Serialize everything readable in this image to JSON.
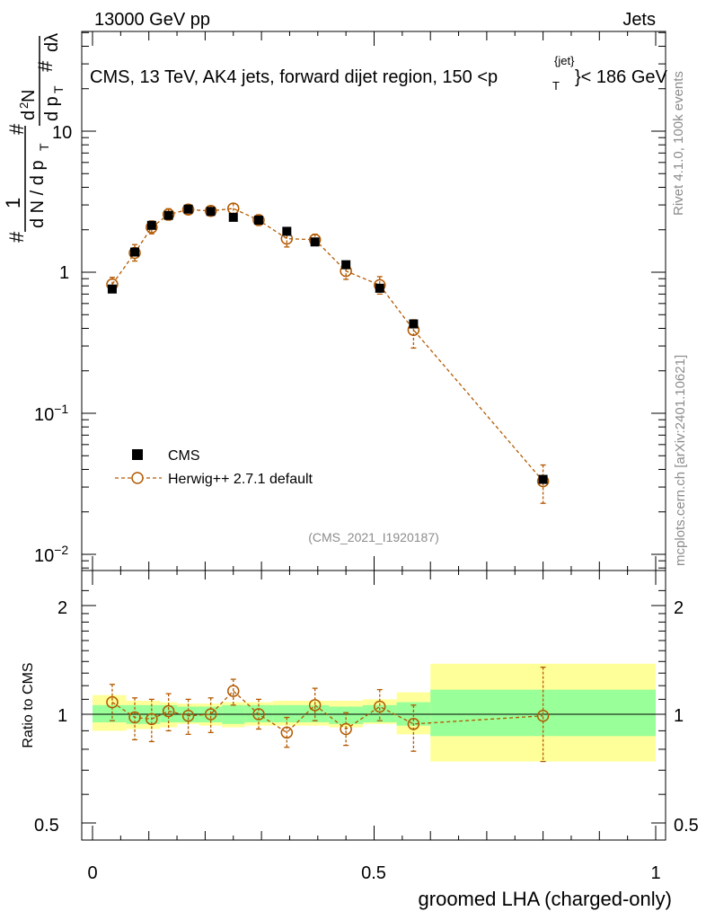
{
  "header": {
    "energy_label": "13000 GeV pp",
    "category_label": "Jets",
    "title_prefix": "CMS, 13 TeV, AK4 jets, forward dijet region, 150 <p",
    "title_sup": "{jet}",
    "title_sub": "T",
    "title_suffix": "}< 186 GeV",
    "analysis_id": "(CMS_2021_I1920187)"
  },
  "side_labels": {
    "rivet": "Rivet 4.1.0,  100k events",
    "mcplots": "mcplots.cern.ch [arXiv:2401.10621]"
  },
  "axes": {
    "ylabel_main": "1/N dN/dp_T d²N/dp_T dλ",
    "ylabel_ratio": "Ratio to CMS",
    "xlabel": "groomed LHA (charged-only)",
    "x_ticks": [
      "0",
      "0.5",
      "1"
    ],
    "y_main_ticks": [
      "10",
      "1",
      "10",
      "10"
    ],
    "y_main_tick_exponents": [
      "",
      "",
      "−1",
      "−2"
    ],
    "y_ratio_ticks": [
      "2",
      "1",
      "0.5"
    ]
  },
  "legend": {
    "data_label": "CMS",
    "mc_label": "Herwig++ 2.7.1 default"
  },
  "colors": {
    "data": "#000000",
    "mc": "#b35900",
    "band_inner": "#99ff99",
    "band_outer": "#ffff99"
  },
  "chart_data": {
    "type": "scatter",
    "title": "CMS, 13 TeV, AK4 jets, forward dijet region, 150 < pT < 186 GeV",
    "xlabel": "groomed LHA (charged-only)",
    "ylabel": "1/N dN/dλ",
    "xlim": [
      0,
      1
    ],
    "ylim_main": [
      0.008,
      60
    ],
    "yscale_main": "log",
    "ylim_ratio": [
      0.4,
      2.4
    ],
    "yscale_ratio": "log",
    "bins": [
      [
        0.0,
        0.06
      ],
      [
        0.06,
        0.09
      ],
      [
        0.09,
        0.12
      ],
      [
        0.12,
        0.15
      ],
      [
        0.15,
        0.19
      ],
      [
        0.19,
        0.23
      ],
      [
        0.23,
        0.27
      ],
      [
        0.27,
        0.32
      ],
      [
        0.32,
        0.37
      ],
      [
        0.37,
        0.42
      ],
      [
        0.42,
        0.48
      ],
      [
        0.48,
        0.54
      ],
      [
        0.54,
        0.6
      ],
      [
        0.6,
        1.0
      ]
    ],
    "x": [
      0.035,
      0.075,
      0.105,
      0.135,
      0.17,
      0.21,
      0.25,
      0.295,
      0.345,
      0.395,
      0.45,
      0.51,
      0.57,
      0.8
    ],
    "series": [
      {
        "name": "CMS",
        "values": [
          0.76,
          1.39,
          2.15,
          2.53,
          2.8,
          2.7,
          2.45,
          2.34,
          1.95,
          1.64,
          1.13,
          0.77,
          0.43,
          0.034
        ]
      },
      {
        "name": "Herwig++ 2.7.1 default",
        "values": [
          0.82,
          1.37,
          2.08,
          2.57,
          2.78,
          2.72,
          2.83,
          2.34,
          1.73,
          1.7,
          1.02,
          0.81,
          0.39,
          0.033
        ],
        "err_lo": [
          0.09,
          0.17,
          0.21,
          0.23,
          0.21,
          0.21,
          0.22,
          0.19,
          0.22,
          0.15,
          0.13,
          0.11,
          0.1,
          0.01
        ],
        "err_hi": [
          0.1,
          0.2,
          0.23,
          0.25,
          0.22,
          0.23,
          0.24,
          0.21,
          0.22,
          0.16,
          0.12,
          0.12,
          0.07,
          0.01
        ]
      }
    ],
    "ratio": {
      "mc_over_data": [
        1.08,
        0.98,
        0.97,
        1.02,
        0.99,
        1.0,
        1.16,
        1.0,
        0.89,
        1.06,
        0.91,
        1.05,
        0.94,
        0.99
      ],
      "err_lo": [
        0.12,
        0.13,
        0.13,
        0.12,
        0.11,
        0.11,
        0.1,
        0.09,
        0.08,
        0.1,
        0.09,
        0.09,
        0.15,
        0.25
      ],
      "err_hi": [
        0.13,
        0.13,
        0.13,
        0.12,
        0.11,
        0.11,
        0.09,
        0.1,
        0.09,
        0.12,
        0.1,
        0.12,
        0.12,
        0.36
      ],
      "band_inner": [
        [
          0.95,
          1.06
        ],
        [
          0.94,
          1.06
        ],
        [
          0.94,
          1.06
        ],
        [
          0.95,
          1.06
        ],
        [
          0.95,
          1.05
        ],
        [
          0.95,
          1.05
        ],
        [
          0.94,
          1.06
        ],
        [
          0.95,
          1.06
        ],
        [
          0.95,
          1.06
        ],
        [
          0.95,
          1.06
        ],
        [
          0.94,
          1.05
        ],
        [
          0.95,
          1.06
        ],
        [
          0.93,
          1.08
        ],
        [
          0.87,
          1.17
        ]
      ],
      "band_outer": [
        [
          0.9,
          1.13
        ],
        [
          0.91,
          1.09
        ],
        [
          0.91,
          1.09
        ],
        [
          0.92,
          1.08
        ],
        [
          0.94,
          1.07
        ],
        [
          0.93,
          1.07
        ],
        [
          0.92,
          1.08
        ],
        [
          0.93,
          1.08
        ],
        [
          0.93,
          1.09
        ],
        [
          0.93,
          1.09
        ],
        [
          0.92,
          1.09
        ],
        [
          0.94,
          1.1
        ],
        [
          0.88,
          1.15
        ],
        [
          0.74,
          1.38
        ]
      ]
    }
  }
}
